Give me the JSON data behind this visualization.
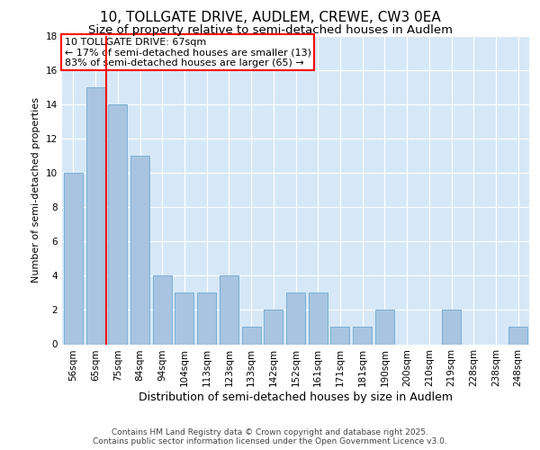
{
  "title1": "10, TOLLGATE DRIVE, AUDLEM, CREWE, CW3 0EA",
  "title2": "Size of property relative to semi-detached houses in Audlem",
  "xlabel": "Distribution of semi-detached houses by size in Audlem",
  "ylabel": "Number of semi-detached properties",
  "categories": [
    "56sqm",
    "65sqm",
    "75sqm",
    "84sqm",
    "94sqm",
    "104sqm",
    "113sqm",
    "123sqm",
    "133sqm",
    "142sqm",
    "152sqm",
    "161sqm",
    "171sqm",
    "181sqm",
    "190sqm",
    "200sqm",
    "210sqm",
    "219sqm",
    "228sqm",
    "238sqm",
    "248sqm"
  ],
  "values": [
    10,
    15,
    14,
    11,
    4,
    3,
    3,
    4,
    1,
    2,
    3,
    3,
    1,
    1,
    2,
    0,
    0,
    2,
    0,
    0,
    1
  ],
  "bar_color": "#a8c4e0",
  "bar_edge_color": "#7aafd4",
  "vline_x": 1.5,
  "vline_color": "red",
  "annotation_title": "10 TOLLGATE DRIVE: 67sqm",
  "annotation_line1": "← 17% of semi-detached houses are smaller (13)",
  "annotation_line2": "83% of semi-detached houses are larger (65) →",
  "annotation_box_color": "white",
  "annotation_box_edge": "red",
  "ylim": [
    0,
    18
  ],
  "yticks": [
    0,
    2,
    4,
    6,
    8,
    10,
    12,
    14,
    16,
    18
  ],
  "background_color": "#d6e8f7",
  "footer_line1": "Contains HM Land Registry data © Crown copyright and database right 2025.",
  "footer_line2": "Contains public sector information licensed under the Open Government Licence v3.0.",
  "title1_fontsize": 11,
  "title2_fontsize": 9.5,
  "xlabel_fontsize": 9,
  "ylabel_fontsize": 8,
  "tick_fontsize": 7.5,
  "annotation_fontsize": 8,
  "footer_fontsize": 6.5
}
